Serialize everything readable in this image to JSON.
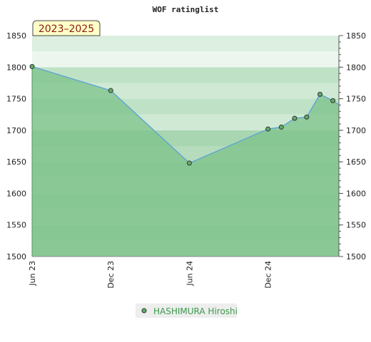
{
  "chart_data": {
    "type": "line",
    "title": "WOF ratinglist",
    "period_badge": "2023–2025",
    "xlabel": "",
    "ylabel": "",
    "ylim": [
      1500,
      1850
    ],
    "yticks": [
      1500,
      1550,
      1600,
      1650,
      1700,
      1750,
      1800,
      1850
    ],
    "xlim": [
      "2023-06-01",
      "2025-05-15"
    ],
    "xticks": [
      {
        "date": "2023-06-01",
        "label": "Jun 23"
      },
      {
        "date": "2023-12-01",
        "label": "Dec 23"
      },
      {
        "date": "2024-06-01",
        "label": "Jun 24"
      },
      {
        "date": "2024-12-01",
        "label": "Dec 24"
      }
    ],
    "grid": true,
    "legend_position": "bottom",
    "series": [
      {
        "name": "HASHIMURA Hiroshi",
        "color": "#5aa0d8",
        "marker_color": "#5fae67",
        "fill_color": "#7cc18a",
        "points": [
          {
            "x": "2023-06-01",
            "y": 1801
          },
          {
            "x": "2023-12-01",
            "y": 1763
          },
          {
            "x": "2024-06-01",
            "y": 1648
          },
          {
            "x": "2024-12-01",
            "y": 1702
          },
          {
            "x": "2025-01-01",
            "y": 1705
          },
          {
            "x": "2025-02-01",
            "y": 1719
          },
          {
            "x": "2025-03-01",
            "y": 1721
          },
          {
            "x": "2025-04-01",
            "y": 1757
          },
          {
            "x": "2025-05-01",
            "y": 1747
          }
        ]
      }
    ]
  }
}
